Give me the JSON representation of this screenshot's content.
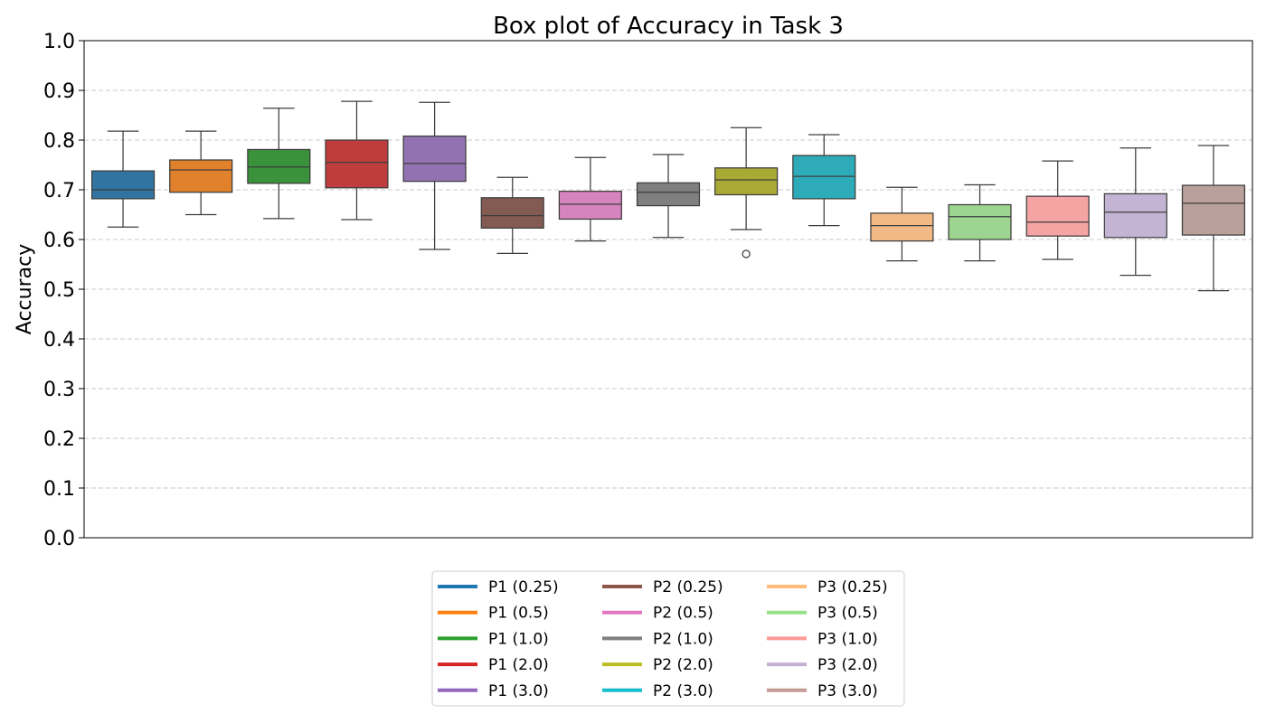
{
  "chart_data": {
    "type": "box",
    "title": "Box plot of Accuracy in Task 3",
    "xlabel": "",
    "ylabel": "Accuracy",
    "ylim": [
      0.0,
      1.0
    ],
    "yticks": [
      "0.0",
      "0.1",
      "0.2",
      "0.3",
      "0.4",
      "0.5",
      "0.6",
      "0.7",
      "0.8",
      "0.9",
      "1.0"
    ],
    "grid": "horizontal dashed",
    "legend_position": "bottom-center",
    "series": [
      {
        "name": "P1 (0.25)",
        "color": "#1f77b4",
        "box_color": "#3274a1",
        "whisker_low": 0.625,
        "q1": 0.682,
        "median": 0.7,
        "q3": 0.738,
        "whisker_high": 0.818,
        "outliers": []
      },
      {
        "name": "P1 (0.5)",
        "color": "#ff7f0e",
        "box_color": "#e1812c",
        "whisker_low": 0.65,
        "q1": 0.695,
        "median": 0.74,
        "q3": 0.76,
        "whisker_high": 0.818,
        "outliers": []
      },
      {
        "name": "P1 (1.0)",
        "color": "#2ca02c",
        "box_color": "#3a923a",
        "whisker_low": 0.642,
        "q1": 0.713,
        "median": 0.746,
        "q3": 0.781,
        "whisker_high": 0.864,
        "outliers": []
      },
      {
        "name": "P1 (2.0)",
        "color": "#d62728",
        "box_color": "#c03d3e",
        "whisker_low": 0.64,
        "q1": 0.704,
        "median": 0.755,
        "q3": 0.8,
        "whisker_high": 0.878,
        "outliers": []
      },
      {
        "name": "P1 (3.0)",
        "color": "#9467bd",
        "box_color": "#9372b2",
        "whisker_low": 0.58,
        "q1": 0.717,
        "median": 0.753,
        "q3": 0.808,
        "whisker_high": 0.876,
        "outliers": []
      },
      {
        "name": "P2 (0.25)",
        "color": "#8c564b",
        "box_color": "#845b53",
        "whisker_low": 0.572,
        "q1": 0.623,
        "median": 0.648,
        "q3": 0.684,
        "whisker_high": 0.725,
        "outliers": []
      },
      {
        "name": "P2 (0.5)",
        "color": "#e377c2",
        "box_color": "#d684bd",
        "whisker_low": 0.597,
        "q1": 0.641,
        "median": 0.671,
        "q3": 0.697,
        "whisker_high": 0.765,
        "outliers": []
      },
      {
        "name": "P2 (1.0)",
        "color": "#7f7f7f",
        "box_color": "#7f7f7f",
        "whisker_low": 0.604,
        "q1": 0.668,
        "median": 0.695,
        "q3": 0.714,
        "whisker_high": 0.771,
        "outliers": []
      },
      {
        "name": "P2 (2.0)",
        "color": "#bcbd22",
        "box_color": "#a9aa35",
        "whisker_low": 0.62,
        "q1": 0.69,
        "median": 0.72,
        "q3": 0.744,
        "whisker_high": 0.825,
        "outliers": [
          0.571
        ]
      },
      {
        "name": "P2 (3.0)",
        "color": "#17becf",
        "box_color": "#2eabb8",
        "whisker_low": 0.628,
        "q1": 0.682,
        "median": 0.727,
        "q3": 0.769,
        "whisker_high": 0.811,
        "outliers": []
      },
      {
        "name": "P3 (0.25)",
        "color": "#ffbb78",
        "box_color": "#f1b985",
        "whisker_low": 0.557,
        "q1": 0.597,
        "median": 0.628,
        "q3": 0.653,
        "whisker_high": 0.705,
        "outliers": []
      },
      {
        "name": "P3 (0.5)",
        "color": "#98df8a",
        "box_color": "#9dd490",
        "whisker_low": 0.557,
        "q1": 0.6,
        "median": 0.646,
        "q3": 0.67,
        "whisker_high": 0.71,
        "outliers": []
      },
      {
        "name": "P3 (1.0)",
        "color": "#ff9896",
        "box_color": "#f4a4a2",
        "whisker_low": 0.56,
        "q1": 0.607,
        "median": 0.635,
        "q3": 0.687,
        "whisker_high": 0.758,
        "outliers": []
      },
      {
        "name": "P3 (2.0)",
        "color": "#c5b0d5",
        "box_color": "#c3b4d3",
        "whisker_low": 0.528,
        "q1": 0.604,
        "median": 0.655,
        "q3": 0.692,
        "whisker_high": 0.784,
        "outliers": []
      },
      {
        "name": "P3 (3.0)",
        "color": "#c49c94",
        "box_color": "#b9a09a",
        "whisker_low": 0.497,
        "q1": 0.609,
        "median": 0.673,
        "q3": 0.709,
        "whisker_high": 0.789,
        "outliers": []
      }
    ]
  }
}
